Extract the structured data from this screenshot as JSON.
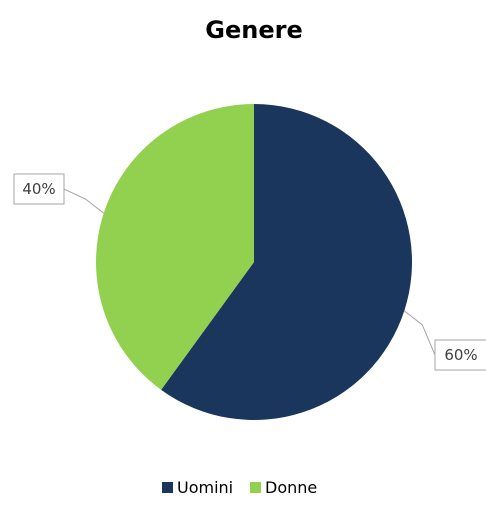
{
  "chart_data": {
    "type": "pie",
    "title": "Genere",
    "categories": [
      "Uomini",
      "Donne"
    ],
    "values": [
      60,
      40
    ],
    "data_labels": [
      "60%",
      "40%"
    ],
    "colors": [
      "#1b365d",
      "#92d050"
    ],
    "legend": {
      "position": "bottom",
      "entries": [
        "Uomini",
        "Donne"
      ]
    }
  }
}
